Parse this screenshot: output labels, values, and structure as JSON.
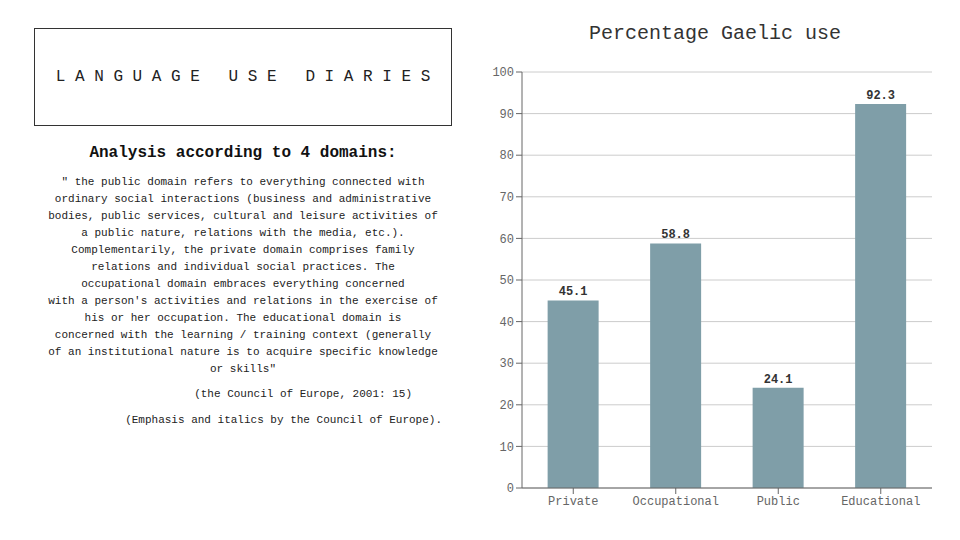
{
  "chart_data": {
    "type": "bar",
    "title": "Percentage Gaelic use",
    "categories": [
      "Private",
      "Occupational",
      "Public",
      "Educational"
    ],
    "values": [
      45.1,
      58.8,
      24.1,
      92.3
    ],
    "color": "#7f9ea8",
    "ylim": [
      0,
      100
    ],
    "yticks": [
      0,
      10,
      20,
      30,
      40,
      50,
      60,
      70,
      80,
      90,
      100
    ],
    "grid": true,
    "data_labels": true,
    "annotations": [
      "L A N G U A G E   U S E   D I A R I E S",
      "Analysis according to 4 domains:",
      "\" the public domain refers to everything connected with",
      "ordinary social interactions (business and administrative",
      "bodies, public services, cultural and leisure activities of",
      "a public nature, relations with the media, etc.).",
      "Complementarily, the private domain comprises family",
      "relations and individual social practices. The",
      "occupational domain embraces everything concerned",
      "with a person's activities and relations in the exercise of",
      "his or her occupation. The educational domain is",
      "concerned with the learning / training context (generally",
      "of an institutional nature is to acquire specific knowledge",
      "or skills\"",
      "(the Council of Europe, 2001: 15)",
      "(Emphasis and italics by the Council of Europe)."
    ]
  }
}
